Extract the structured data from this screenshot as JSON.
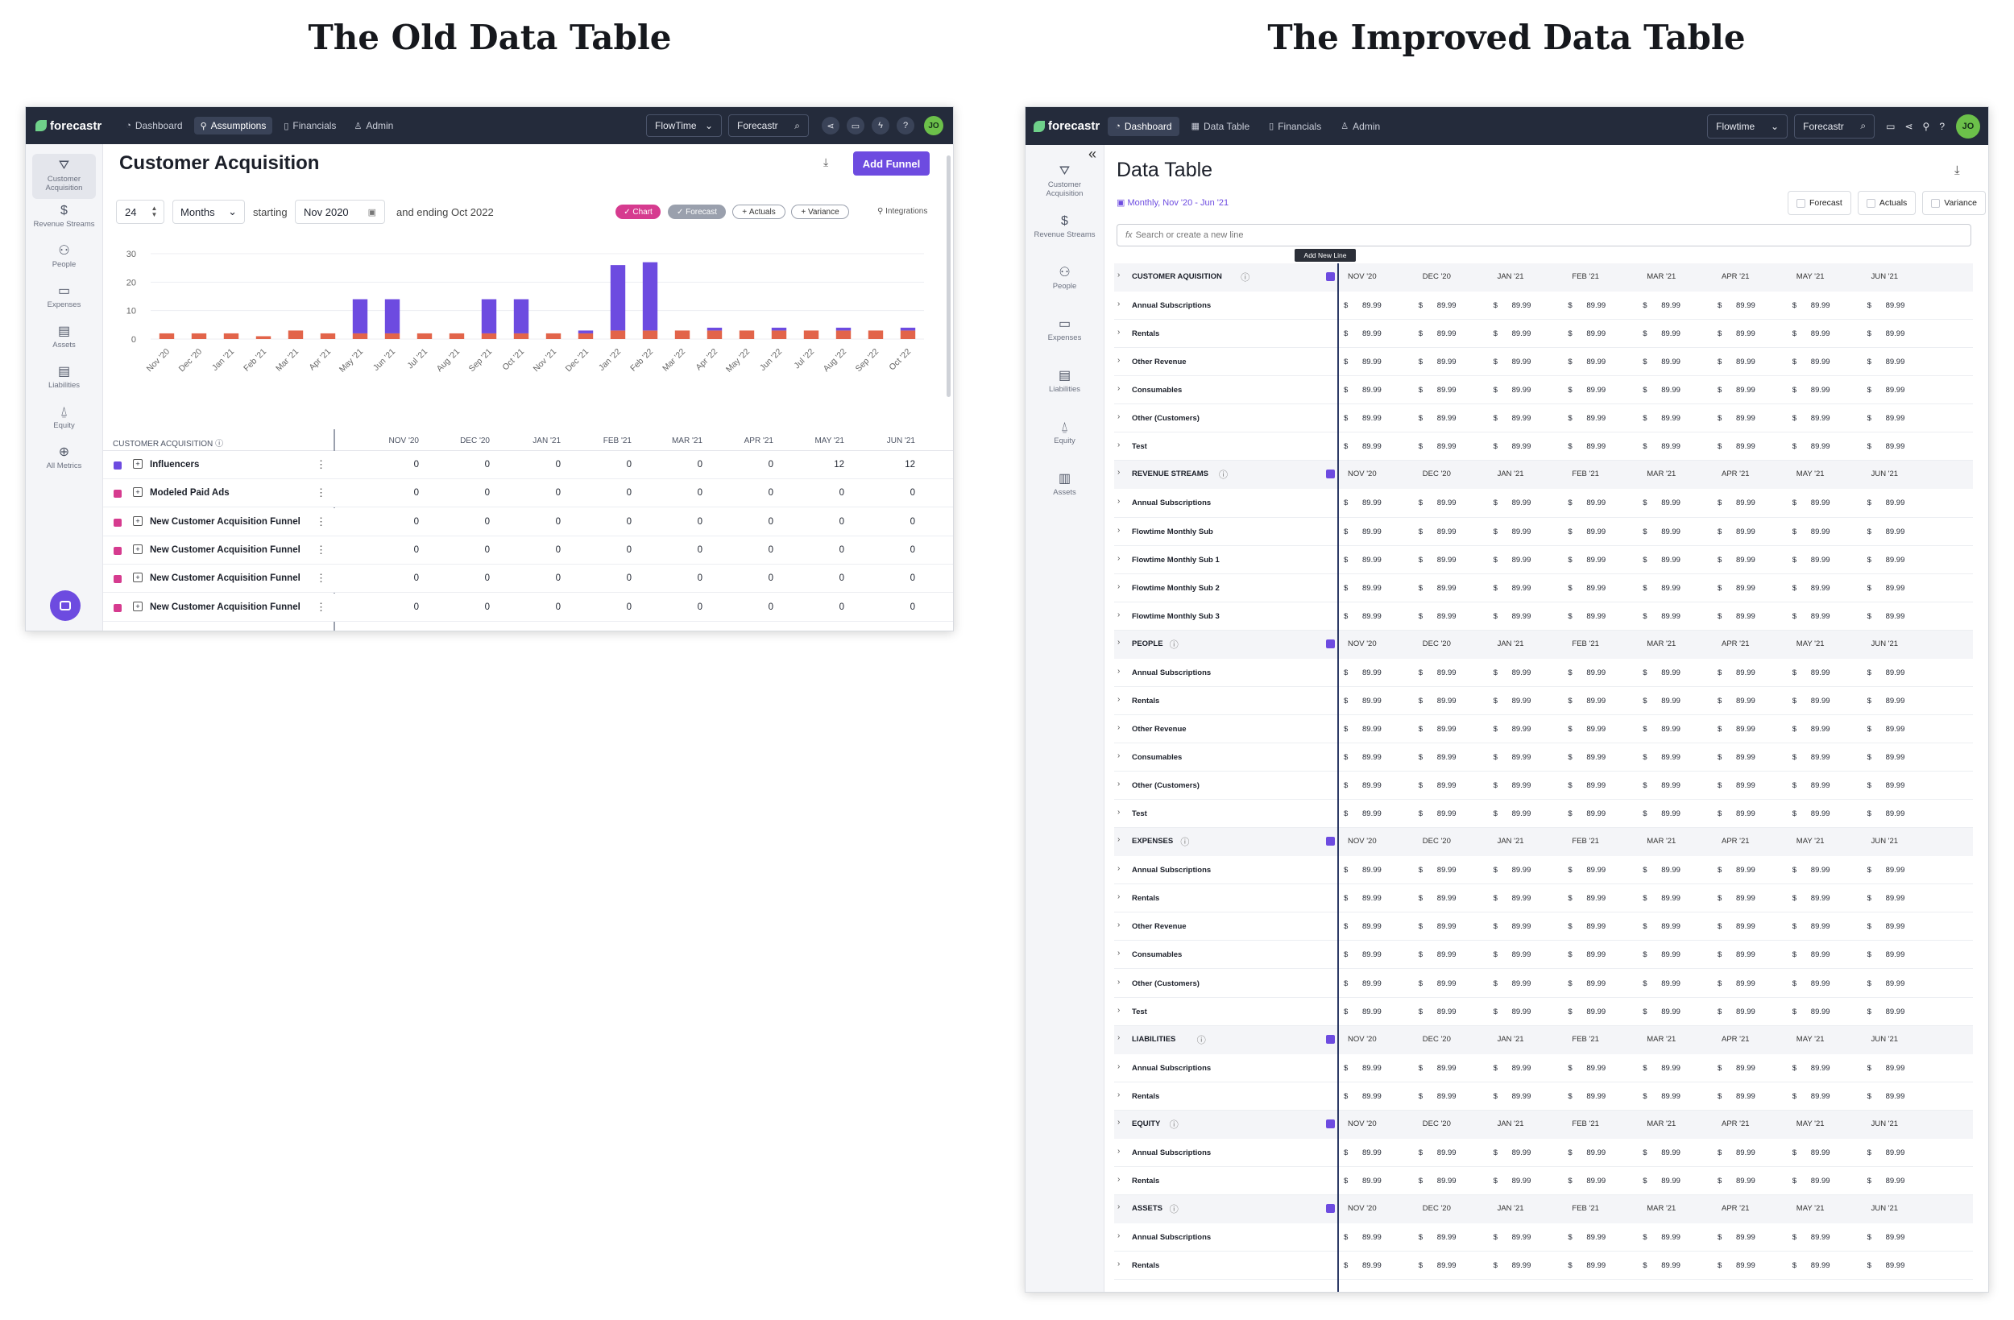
{
  "titles": {
    "old": "The Old Data Table",
    "new": "The Improved Data Table"
  },
  "colors": {
    "topbar": "#242b3b",
    "purple": "#6d4be0",
    "orange": "#e2644a",
    "pink": "#d63b8f",
    "green": "#6cc04a"
  },
  "old": {
    "brand": "forecastr",
    "nav": [
      {
        "icon": "dashboard-icon",
        "label": "Dashboard"
      },
      {
        "icon": "lightbulb-icon",
        "label": "Assumptions"
      },
      {
        "icon": "book-icon",
        "label": "Financials"
      },
      {
        "icon": "user-icon",
        "label": "Admin"
      }
    ],
    "workspace": "FlowTime",
    "search_label": "Forecastr",
    "avatar": "JO",
    "sidebar": [
      {
        "icon": "filter-icon",
        "label": "Customer Acquisition"
      },
      {
        "icon": "dollar-icon",
        "label": "Revenue Streams"
      },
      {
        "icon": "people-icon",
        "label": "People"
      },
      {
        "icon": "card-icon",
        "label": "Expenses"
      },
      {
        "icon": "doc-icon",
        "label": "Assets"
      },
      {
        "icon": "doc-icon",
        "label": "Liabilities"
      },
      {
        "icon": "bell-icon",
        "label": "Equity"
      },
      {
        "icon": "globe-icon",
        "label": "All Metrics"
      }
    ],
    "page_title": "Customer Acquisition",
    "add_button": "Add Funnel",
    "period_count": "24",
    "period_unit": "Months",
    "starting_label": "starting",
    "start_date": "Nov 2020",
    "ending_label": "and ending Oct 2022",
    "toggles": {
      "chart": "Chart",
      "forecast": "Forecast",
      "actuals": "Actuals",
      "variance": "Variance"
    },
    "integrations": "Integrations",
    "chart_data": {
      "type": "bar",
      "categories": [
        "Nov '20",
        "Dec '20",
        "Jan '21",
        "Feb '21",
        "Mar '21",
        "Apr '21",
        "May '21",
        "Jun '21",
        "Jul '21",
        "Aug '21",
        "Sep '21",
        "Oct '21",
        "Nov '21",
        "Dec '21",
        "Jan '22",
        "Feb '22",
        "Mar '22",
        "Apr '22",
        "May '22",
        "Jun '22",
        "Jul '22",
        "Aug '22",
        "Sep '22",
        "Oct '22"
      ],
      "series": [
        {
          "color": "#e2644a",
          "values": [
            2,
            2,
            2,
            1,
            3,
            2,
            2,
            2,
            2,
            2,
            2,
            2,
            2,
            2,
            3,
            3,
            3,
            3,
            3,
            3,
            3,
            3,
            3,
            3
          ]
        },
        {
          "color": "#6d4be0",
          "values": [
            0,
            0,
            0,
            0,
            0,
            0,
            12,
            12,
            0,
            0,
            12,
            12,
            0,
            1,
            23,
            24,
            0,
            1,
            0,
            1,
            0,
            1,
            0,
            1
          ]
        }
      ],
      "yticks": [
        0,
        10,
        20,
        30
      ],
      "ylim": [
        0,
        30
      ]
    },
    "table": {
      "section": "CUSTOMER ACQUISITION",
      "months": [
        "NOV '20",
        "DEC '20",
        "JAN '21",
        "FEB '21",
        "MAR '21",
        "APR '21",
        "MAY '21",
        "JUN '21"
      ],
      "rows": [
        {
          "color": "#6d4be0",
          "name": "Influencers",
          "values": [
            "0",
            "0",
            "0",
            "0",
            "0",
            "0",
            "12",
            "12"
          ]
        },
        {
          "color": "#d63b8f",
          "name": "Modeled Paid Ads",
          "values": [
            "0",
            "0",
            "0",
            "0",
            "0",
            "0",
            "0",
            "0"
          ]
        },
        {
          "color": "#d63b8f",
          "name": "New Customer Acquisition Funnel",
          "values": [
            "0",
            "0",
            "0",
            "0",
            "0",
            "0",
            "0",
            "0"
          ]
        },
        {
          "color": "#d63b8f",
          "name": "New Customer Acquisition Funnel",
          "values": [
            "0",
            "0",
            "0",
            "0",
            "0",
            "0",
            "0",
            "0"
          ]
        },
        {
          "color": "#d63b8f",
          "name": "New Customer Acquisition Funnel",
          "values": [
            "0",
            "0",
            "0",
            "0",
            "0",
            "0",
            "0",
            "0"
          ]
        },
        {
          "color": "#d63b8f",
          "name": "New Customer Acquisition Funnel",
          "values": [
            "0",
            "0",
            "0",
            "0",
            "0",
            "0",
            "0",
            "0"
          ]
        }
      ]
    }
  },
  "new": {
    "brand": "forecastr",
    "nav": [
      {
        "icon": "dashboard-icon",
        "label": "Dashboard"
      },
      {
        "icon": "table-icon",
        "label": "Data Table"
      },
      {
        "icon": "book-icon",
        "label": "Financials"
      },
      {
        "icon": "user-icon",
        "label": "Admin"
      }
    ],
    "workspace": "Flowtime",
    "search_label": "Forecastr",
    "avatar": "JO",
    "sidebar": [
      {
        "icon": "filter-icon",
        "label": "Customer Acquisition"
      },
      {
        "icon": "dollar-icon",
        "label": "Revenue Streams"
      },
      {
        "icon": "people-icon",
        "label": "People"
      },
      {
        "icon": "card-icon",
        "label": "Expenses"
      },
      {
        "icon": "doc-icon",
        "label": "Liabilities"
      },
      {
        "icon": "bell-icon",
        "label": "Equity"
      },
      {
        "icon": "calc-icon",
        "label": "Assets"
      }
    ],
    "collapse": "«",
    "page_title": "Data Table",
    "date_range": "Monthly, Nov '20 - Jun '21",
    "filters": [
      "Forecast",
      "Actuals",
      "Variance"
    ],
    "search_placeholder": "Search or create a new line",
    "tooltip": "Add New Line",
    "currency": "$",
    "value": "89.99",
    "months": [
      "NOV '20",
      "DEC '20",
      "JAN '21",
      "FEB '21",
      "MAR '21",
      "APR '21",
      "MAY '21",
      "JUN '21"
    ],
    "sections": [
      {
        "title": "CUSTOMER AQUISITION",
        "rows": [
          "Annual Subscriptions",
          "Rentals",
          "Other Revenue",
          "Consumables",
          "Other (Customers)",
          "Test"
        ]
      },
      {
        "title": "REVENUE STREAMS",
        "rows": [
          "Annual Subscriptions",
          "Flowtime Monthly Sub",
          "Flowtime Monthly Sub 1",
          "Flowtime Monthly Sub 2",
          "Flowtime Monthly Sub 3"
        ]
      },
      {
        "title": "PEOPLE",
        "rows": [
          "Annual Subscriptions",
          "Rentals",
          "Other Revenue",
          "Consumables",
          "Other (Customers)",
          "Test"
        ]
      },
      {
        "title": "EXPENSES",
        "rows": [
          "Annual Subscriptions",
          "Rentals",
          "Other Revenue",
          "Consumables",
          "Other (Customers)",
          "Test"
        ]
      },
      {
        "title": "LIABILITIES",
        "rows": [
          "Annual Subscriptions",
          "Rentals"
        ]
      },
      {
        "title": "EQUITY",
        "rows": [
          "Annual Subscriptions",
          "Rentals"
        ]
      },
      {
        "title": "ASSETS",
        "rows": [
          "Annual Subscriptions",
          "Rentals"
        ]
      }
    ]
  }
}
